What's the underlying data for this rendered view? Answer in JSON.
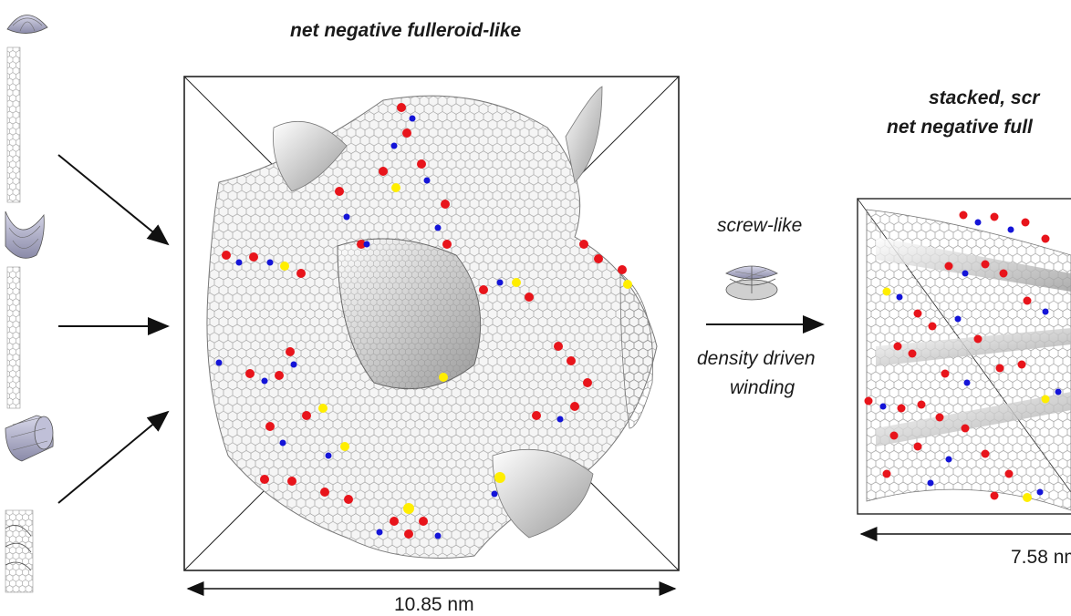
{
  "labels": {
    "main_title": "net negative fulleroid-like",
    "right_title_line1": "stacked, scr",
    "right_title_line2": "net negative full",
    "process_top": "screw-like",
    "process_bottom_line1": "density driven",
    "process_bottom_line2": "winding",
    "left_dimension": "10.85 nm",
    "right_dimension": "7.58 nm"
  },
  "colors": {
    "ring_red": "#e8141b",
    "ring_blue": "#1414d8",
    "ring_yellow": "#ffee00",
    "sheet": "#f4f4f4",
    "sheet_line": "#8a8a8a",
    "box_line": "#222222"
  },
  "icons": [
    "dome-surface-icon",
    "saddle-surface-icon",
    "cylinder-surface-icon",
    "wavy-surface-icon",
    "helicoid-screw-icon"
  ]
}
